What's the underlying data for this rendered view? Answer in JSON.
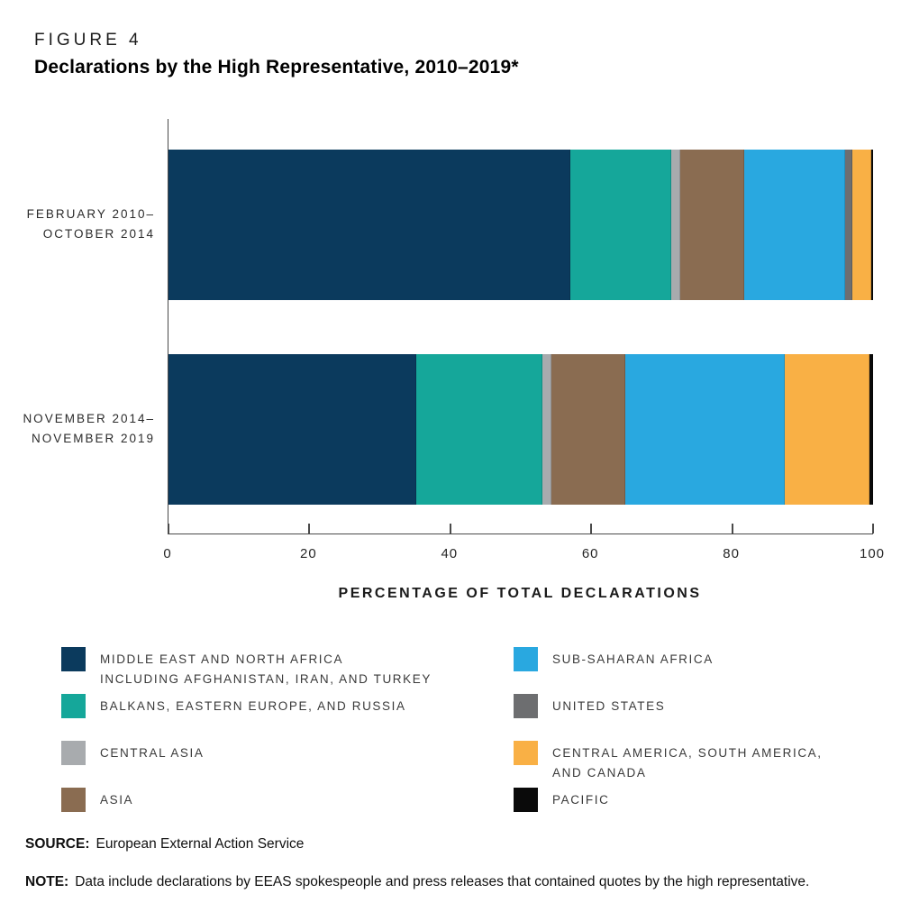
{
  "figure_label": "FIGURE 4",
  "title": "Declarations by the High Representative, 2010–2019*",
  "chart_data": {
    "type": "bar",
    "orientation": "horizontal",
    "stacked": true,
    "unit": "percent",
    "xlim": [
      0,
      100
    ],
    "x_ticks": [
      0,
      20,
      40,
      60,
      80,
      100
    ],
    "xlabel": "PERCENTAGE OF TOTAL DECLARATIONS",
    "grid": false,
    "legend_position": "bottom-two-columns",
    "categories": [
      {
        "lines": [
          "FEBRUARY 2010–",
          "OCTOBER 2014"
        ]
      },
      {
        "lines": [
          "NOVEMBER 2014–",
          "NOVEMBER 2019"
        ]
      }
    ],
    "series": [
      {
        "slug": "middle-east-and-north-africa",
        "label_lines": [
          "MIDDLE EAST AND NORTH AFRICA",
          "INCLUDING AFGHANISTAN, IRAN, AND TURKEY"
        ],
        "color": "#0b3a5d",
        "values": [
          57.0,
          35.2
        ]
      },
      {
        "slug": "balkans-eastern-europe-and-russia",
        "label_lines": [
          "BALKANS, EASTERN EUROPE, AND RUSSIA"
        ],
        "color": "#15a79a",
        "values": [
          14.3,
          17.9
        ]
      },
      {
        "slug": "central-asia",
        "label_lines": [
          "CENTRAL ASIA"
        ],
        "color": "#a8abae",
        "values": [
          1.4,
          1.3
        ]
      },
      {
        "slug": "asia",
        "label_lines": [
          "ASIA"
        ],
        "color": "#8a6c51",
        "values": [
          9.0,
          10.4
        ]
      },
      {
        "slug": "sub-saharan-africa",
        "label_lines": [
          "SUB-SAHARAN AFRICA"
        ],
        "color": "#29a8e0",
        "values": [
          14.3,
          22.7
        ]
      },
      {
        "slug": "united-states",
        "label_lines": [
          "UNITED STATES"
        ],
        "color": "#6d6e70",
        "values": [
          1.1,
          0
        ]
      },
      {
        "slug": "central-america-south-america-and-canada",
        "label_lines": [
          "CENTRAL AMERICA, SOUTH AMERICA,",
          "AND CANADA"
        ],
        "color": "#f9b045",
        "values": [
          2.6,
          12.0
        ]
      },
      {
        "slug": "pacific",
        "label_lines": [
          "PACIFIC"
        ],
        "color": "#0a0a0a",
        "values": [
          0.3,
          0.5
        ]
      }
    ]
  },
  "source": {
    "label": "SOURCE:",
    "text": "European External Action Service"
  },
  "note": {
    "label": "NOTE:",
    "text": "Data include declarations by EEAS spokespeople and press releases that contained quotes by the high representative."
  }
}
